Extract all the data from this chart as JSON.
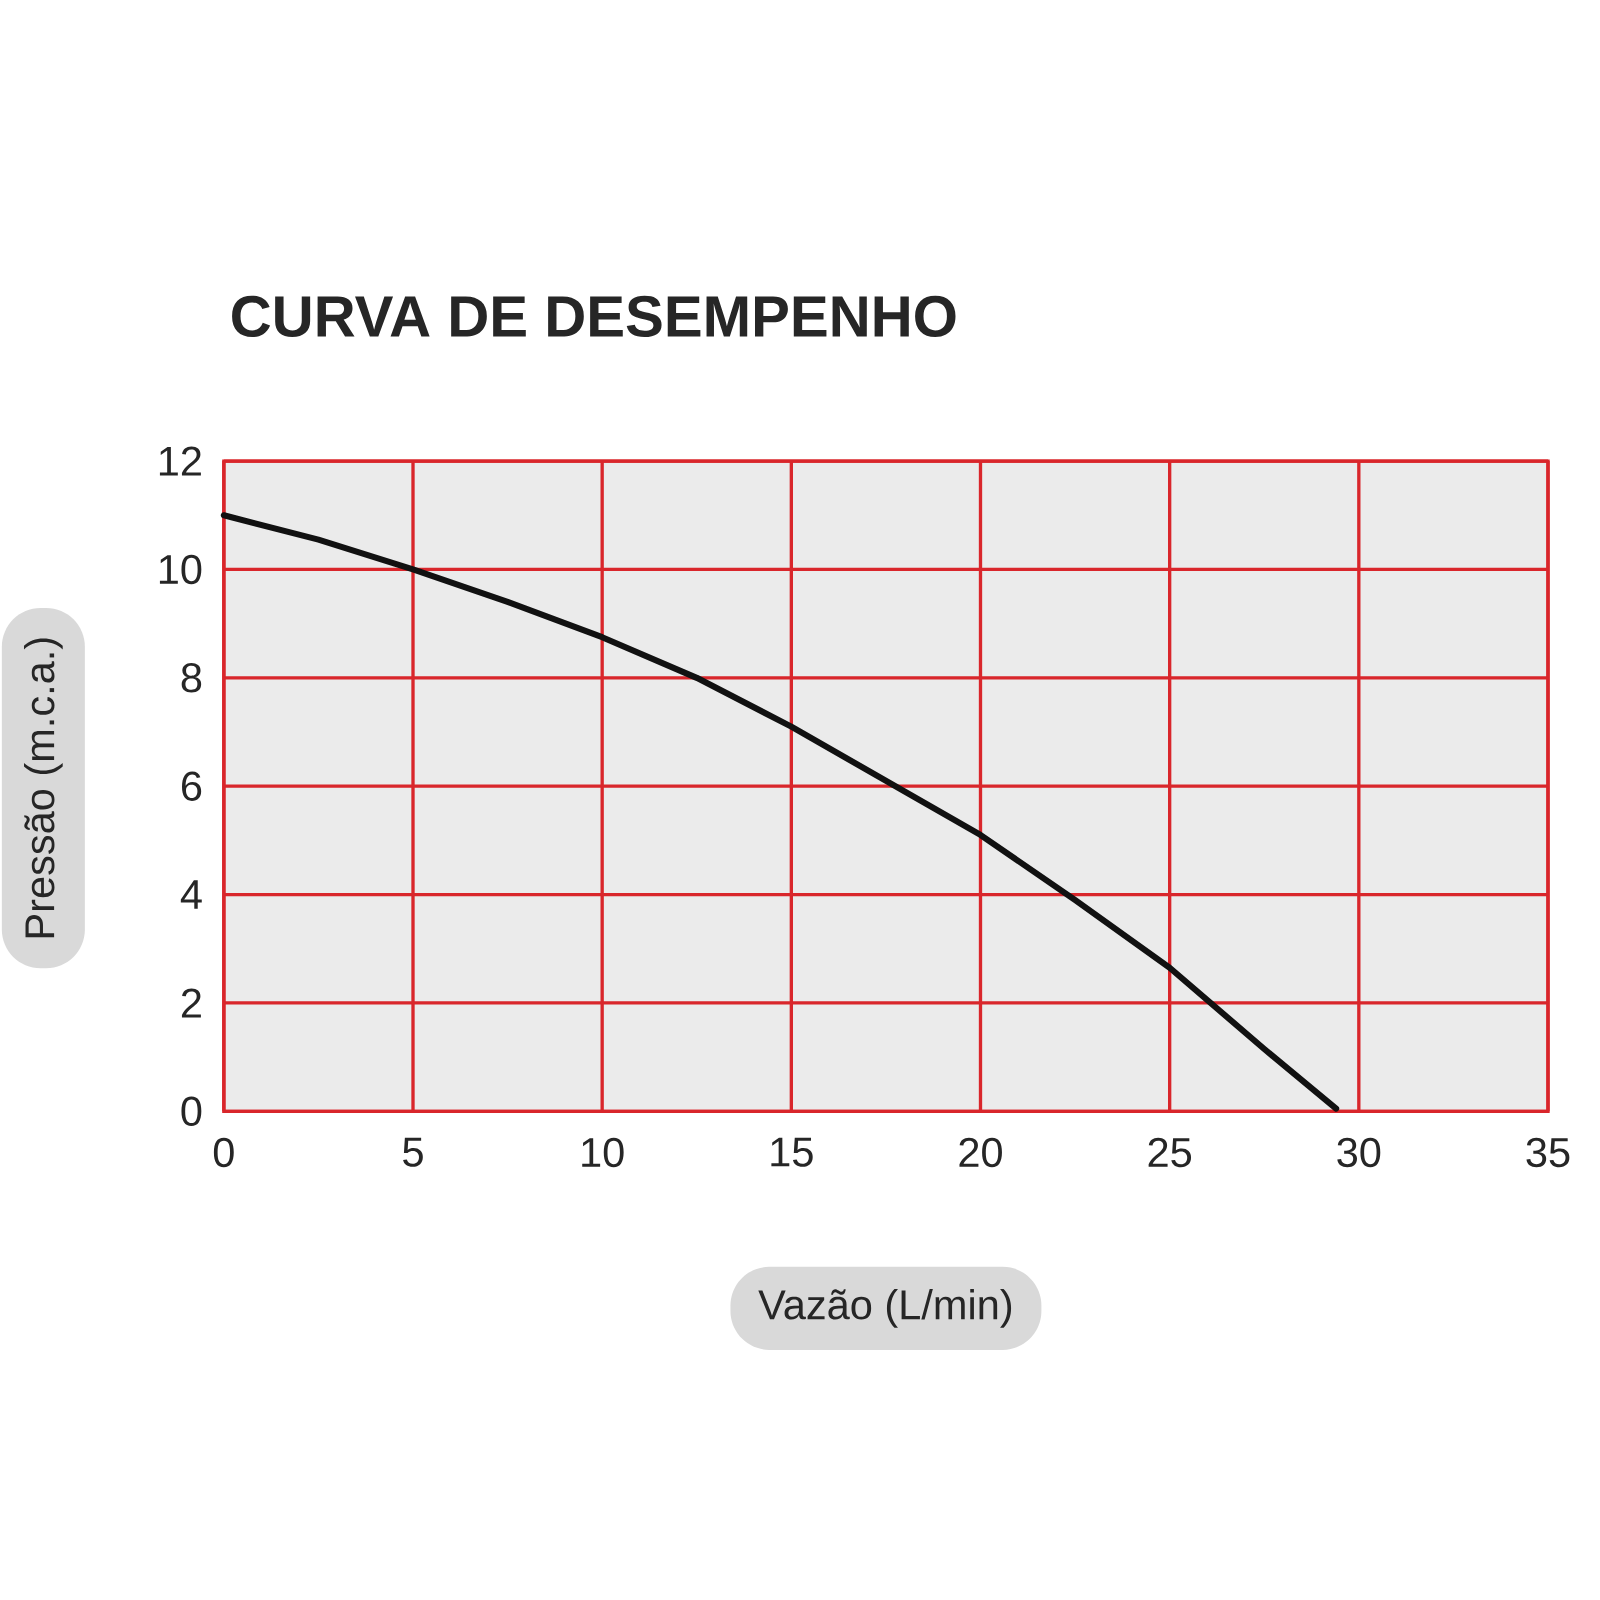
{
  "chart_data": {
    "type": "line",
    "title": "CURVA DE DESEMPENHO",
    "xlabel": "Vazão (L/min)",
    "ylabel": "Pressão (m.c.a.)",
    "x": [
      0,
      2.5,
      5,
      7.5,
      10,
      12.5,
      15,
      17.5,
      20,
      22.5,
      25,
      27.5,
      29.4
    ],
    "series": [
      {
        "color": "#111111",
        "values": [
          11,
          10.55,
          10,
          9.4,
          8.75,
          8,
          7.1,
          6.1,
          5.1,
          3.9,
          2.65,
          1.15,
          0.05
        ]
      }
    ],
    "xlim": [
      0,
      35
    ],
    "xticks": [
      0,
      5,
      10,
      15,
      20,
      25,
      30,
      35
    ],
    "ylim": [
      0,
      12
    ],
    "yticks": [
      0,
      2,
      4,
      6,
      8,
      10,
      12
    ],
    "grid": true,
    "line_style": "solid"
  }
}
